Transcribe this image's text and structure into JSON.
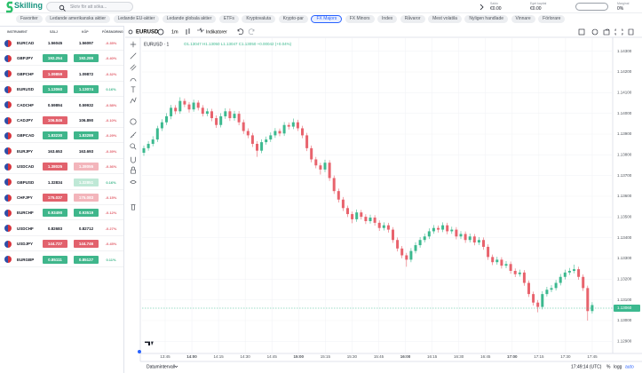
{
  "header": {
    "logo": "Skilling",
    "search_placeholder": "Skriv för att söka...",
    "account": [
      {
        "label": "Saldo",
        "value": "€0.00"
      },
      {
        "label": "Eget kapital",
        "value": "€0.00"
      },
      {
        "label": "Marginal",
        "value": "0%"
      }
    ]
  },
  "tabs": {
    "items": [
      "Favoriter",
      "Ledande amerikanska aktier",
      "Ledande EU-aktier",
      "Ledande globala aktier",
      "ETFs",
      "Kryptovaluta",
      "Krypto-par",
      "FX Majors",
      "FX Minors",
      "Index",
      "Råvaror",
      "Mest volatila",
      "Nyligen handlade",
      "Vinnare",
      "Förlorare"
    ],
    "active": 7
  },
  "watchlist": {
    "columns": [
      "INSTRUMENT",
      "SÄLJ",
      "KÖP",
      "FÖRÄNDRING"
    ],
    "rows": [
      {
        "symbol": "EURCAD",
        "sell": "1.56045",
        "buy": "1.56097",
        "change": "-0.35%",
        "sell_state": "none",
        "buy_state": "none"
      },
      {
        "symbol": "GBPJPY",
        "sell": "192.254",
        "buy": "192.289",
        "change": "-0.40%",
        "sell_state": "up",
        "buy_state": "up"
      },
      {
        "symbol": "GBPCHF",
        "sell": "1.09859",
        "buy": "1.09872",
        "change": "-0.32%",
        "sell_state": "down",
        "buy_state": "none"
      },
      {
        "symbol": "EURUSD",
        "sell": "1.13060",
        "buy": "1.13074",
        "change": "0.16%",
        "sell_state": "up",
        "buy_state": "up"
      },
      {
        "symbol": "CADCHF",
        "sell": "0.59894",
        "buy": "0.59932",
        "change": "-0.58%",
        "sell_state": "none",
        "buy_state": "none"
      },
      {
        "symbol": "CADJPY",
        "sell": "106.846",
        "buy": "106.890",
        "change": "-0.10%",
        "sell_state": "down",
        "buy_state": "none"
      },
      {
        "symbol": "GBPCAD",
        "sell": "1.83230",
        "buy": "1.83289",
        "change": "-0.29%",
        "sell_state": "up",
        "buy_state": "up"
      },
      {
        "symbol": "EURJPY",
        "sell": "163.653",
        "buy": "163.693",
        "change": "-0.39%",
        "sell_state": "none",
        "buy_state": "none"
      },
      {
        "symbol": "USDCAD",
        "sell": "1.38025",
        "buy": "1.38055",
        "change": "-0.36%",
        "sell_state": "down",
        "buy_state": "down-faint"
      },
      {
        "symbol": "GBPUSD",
        "sell": "1.32834",
        "buy": "1.32851",
        "change": "0.16%",
        "sell_state": "none",
        "buy_state": "up-faint"
      },
      {
        "symbol": "CHFJPY",
        "sell": "175.037",
        "buy": "175.083",
        "change": "-0.15%",
        "sell_state": "down",
        "buy_state": "down-faint"
      },
      {
        "symbol": "EURCHF",
        "sell": "0.93490",
        "buy": "0.93519",
        "change": "-0.12%",
        "sell_state": "up",
        "buy_state": "up"
      },
      {
        "symbol": "USDCHF",
        "sell": "0.82683",
        "buy": "0.82712",
        "change": "-0.27%",
        "sell_state": "none",
        "buy_state": "none"
      },
      {
        "symbol": "USDJPY",
        "sell": "144.727",
        "buy": "144.746",
        "change": "-0.45%",
        "sell_state": "down",
        "buy_state": "down"
      },
      {
        "symbol": "EURGBP",
        "sell": "0.85111",
        "buy": "0.85127",
        "change": "0.11%",
        "sell_state": "up",
        "buy_state": "up"
      }
    ]
  },
  "chart_data": {
    "type": "candlestick",
    "symbol": "EURUSD",
    "interval": "1m",
    "indicators_label": "Indikatorer",
    "legend_title": "EURUSD · 1",
    "legend_values": "O1.13047 H1.13050 L1.13047 C1.13050 +0.00042 (+0.04%)",
    "up_color": "#3cb98f",
    "down_color": "#e8636d",
    "grid": true,
    "ylim": [
      1.1285,
      1.1435
    ],
    "yticks": [
      {
        "value": 1.143,
        "label": "1.14300"
      },
      {
        "value": 1.142,
        "label": "1.14200"
      },
      {
        "value": 1.141,
        "label": "1.14100"
      },
      {
        "value": 1.14,
        "label": "1.14000"
      },
      {
        "value": 1.139,
        "label": "1.13900"
      },
      {
        "value": 1.138,
        "label": "1.13800"
      },
      {
        "value": 1.137,
        "label": "1.13700"
      },
      {
        "value": 1.136,
        "label": "1.13600"
      },
      {
        "value": 1.135,
        "label": "1.13500"
      },
      {
        "value": 1.134,
        "label": "1.13400"
      },
      {
        "value": 1.133,
        "label": "1.13300"
      },
      {
        "value": 1.132,
        "label": "1.13200"
      },
      {
        "value": 1.131,
        "label": "1.13100"
      },
      {
        "value": 1.13,
        "label": "1.13000"
      },
      {
        "value": 1.129,
        "label": "1.12900"
      }
    ],
    "last_price": {
      "value": 1.1306,
      "label": "1.13060"
    },
    "time_labels": [
      "13:45",
      "14:00",
      "14:15",
      "14:30",
      "14:45",
      "15:00",
      "15:15",
      "15:30",
      "15:45",
      "16:00",
      "16:15",
      "16:30",
      "16:45",
      "17:00",
      "17:15",
      "17:30",
      "17:45"
    ],
    "date_range_label": "Datumintervall",
    "clock": "17:49:14 (UTC)",
    "scale_options": [
      "%",
      "logg",
      "auto"
    ],
    "candles": [
      [
        1.1381,
        1.13845,
        1.13795,
        1.13832
      ],
      [
        1.13832,
        1.13866,
        1.1382,
        1.13853
      ],
      [
        1.13853,
        1.1389,
        1.13841,
        1.13874
      ],
      [
        1.13874,
        1.1394,
        1.13862,
        1.13928
      ],
      [
        1.13928,
        1.13972,
        1.13915,
        1.13957
      ],
      [
        1.13957,
        1.14001,
        1.13944,
        1.13986
      ],
      [
        1.13986,
        1.14041,
        1.13972,
        1.14027
      ],
      [
        1.14027,
        1.1404,
        1.13996,
        1.1401
      ],
      [
        1.1401,
        1.14078,
        1.13998,
        1.1406
      ],
      [
        1.1406,
        1.14072,
        1.1403,
        1.14043
      ],
      [
        1.14043,
        1.14055,
        1.14004,
        1.14019
      ],
      [
        1.14019,
        1.14066,
        1.14008,
        1.14052
      ],
      [
        1.14052,
        1.14063,
        1.14014,
        1.14027
      ],
      [
        1.14027,
        1.1404,
        1.13985,
        1.13998
      ],
      [
        1.13998,
        1.14024,
        1.13986,
        1.1401
      ],
      [
        1.1401,
        1.14022,
        1.13962,
        1.13977
      ],
      [
        1.13977,
        1.1399,
        1.1393,
        1.13944
      ],
      [
        1.13944,
        1.14001,
        1.13932,
        1.13986
      ],
      [
        1.13986,
        1.14025,
        1.13974,
        1.1401
      ],
      [
        1.1401,
        1.14023,
        1.13963,
        1.13977
      ],
      [
        1.13977,
        1.14012,
        1.13965,
        1.13998
      ],
      [
        1.13998,
        1.14011,
        1.13943,
        1.13957
      ],
      [
        1.13957,
        1.1397,
        1.13901,
        1.13915
      ],
      [
        1.13915,
        1.13928,
        1.1388,
        1.13894
      ],
      [
        1.13894,
        1.13906,
        1.13838,
        1.13853
      ],
      [
        1.13853,
        1.13866,
        1.1379,
        1.1382
      ],
      [
        1.1382,
        1.13875,
        1.13808,
        1.13861
      ],
      [
        1.13861,
        1.13888,
        1.13849,
        1.13874
      ],
      [
        1.13874,
        1.13908,
        1.13862,
        1.13894
      ],
      [
        1.13894,
        1.13929,
        1.13882,
        1.13915
      ],
      [
        1.13915,
        1.13927,
        1.1389,
        1.13903
      ],
      [
        1.13903,
        1.13958,
        1.13891,
        1.13944
      ],
      [
        1.13944,
        1.13956,
        1.13922,
        1.13936
      ],
      [
        1.13936,
        1.13975,
        1.13924,
        1.13957
      ],
      [
        1.13957,
        1.13969,
        1.13915,
        1.13928
      ],
      [
        1.13928,
        1.1394,
        1.1388,
        1.13894
      ],
      [
        1.13894,
        1.13906,
        1.13818,
        1.13832
      ],
      [
        1.13832,
        1.13845,
        1.13764,
        1.13778
      ],
      [
        1.13778,
        1.1379,
        1.13735,
        1.13749
      ],
      [
        1.13749,
        1.13761,
        1.13705,
        1.13729
      ],
      [
        1.13729,
        1.13776,
        1.13717,
        1.13762
      ],
      [
        1.13762,
        1.13774,
        1.13674,
        1.13688
      ],
      [
        1.13688,
        1.137,
        1.13611,
        1.13625
      ],
      [
        1.13625,
        1.13637,
        1.1357,
        1.13584
      ],
      [
        1.13584,
        1.13596,
        1.13529,
        1.13543
      ],
      [
        1.13543,
        1.13555,
        1.135,
        1.13514
      ],
      [
        1.13514,
        1.13526,
        1.1347,
        1.13489
      ],
      [
        1.13489,
        1.13536,
        1.13477,
        1.13522
      ],
      [
        1.13522,
        1.13534,
        1.13488,
        1.13501
      ],
      [
        1.13501,
        1.13513,
        1.13466,
        1.1348
      ],
      [
        1.1348,
        1.13511,
        1.13468,
        1.13497
      ],
      [
        1.13497,
        1.13509,
        1.13458,
        1.13472
      ],
      [
        1.13472,
        1.13484,
        1.13433,
        1.13447
      ],
      [
        1.13447,
        1.13474,
        1.13435,
        1.1346
      ],
      [
        1.1346,
        1.13472,
        1.13425,
        1.13439
      ],
      [
        1.13439,
        1.13451,
        1.13375,
        1.13389
      ],
      [
        1.13389,
        1.13401,
        1.13334,
        1.13348
      ],
      [
        1.13348,
        1.1336,
        1.13301,
        1.13315
      ],
      [
        1.13315,
        1.13327,
        1.1326,
        1.13294
      ],
      [
        1.13294,
        1.1335,
        1.13282,
        1.13336
      ],
      [
        1.13336,
        1.13378,
        1.13324,
        1.13364
      ],
      [
        1.13364,
        1.13403,
        1.13352,
        1.13389
      ],
      [
        1.13389,
        1.1342,
        1.13377,
        1.13406
      ],
      [
        1.13406,
        1.13445,
        1.13394,
        1.13431
      ],
      [
        1.13431,
        1.13461,
        1.13419,
        1.13447
      ],
      [
        1.13447,
        1.13459,
        1.13425,
        1.13439
      ],
      [
        1.13439,
        1.13474,
        1.13427,
        1.1346
      ],
      [
        1.1346,
        1.13472,
        1.13417,
        1.13431
      ],
      [
        1.13431,
        1.13453,
        1.13419,
        1.13439
      ],
      [
        1.13439,
        1.13451,
        1.13392,
        1.13406
      ],
      [
        1.13406,
        1.13432,
        1.13394,
        1.13418
      ],
      [
        1.13418,
        1.1343,
        1.13375,
        1.13389
      ],
      [
        1.13389,
        1.1342,
        1.13377,
        1.13406
      ],
      [
        1.13406,
        1.13418,
        1.13363,
        1.13377
      ],
      [
        1.13377,
        1.13403,
        1.13365,
        1.13389
      ],
      [
        1.13389,
        1.13401,
        1.13342,
        1.13356
      ],
      [
        1.13356,
        1.13368,
        1.13293,
        1.13307
      ],
      [
        1.13307,
        1.13319,
        1.13268,
        1.13282
      ],
      [
        1.13282,
        1.13308,
        1.1327,
        1.13294
      ],
      [
        1.13294,
        1.13306,
        1.13251,
        1.13265
      ],
      [
        1.13265,
        1.13287,
        1.13253,
        1.13273
      ],
      [
        1.13273,
        1.13285,
        1.13226,
        1.1324
      ],
      [
        1.1324,
        1.13252,
        1.1321,
        1.13224
      ],
      [
        1.13224,
        1.13246,
        1.13212,
        1.13232
      ],
      [
        1.13232,
        1.13244,
        1.13168,
        1.13182
      ],
      [
        1.13182,
        1.13194,
        1.13114,
        1.13128
      ],
      [
        1.13128,
        1.1314,
        1.13073,
        1.13087
      ],
      [
        1.13087,
        1.13099,
        1.1304,
        1.13066
      ],
      [
        1.13066,
        1.13142,
        1.13054,
        1.13128
      ],
      [
        1.13128,
        1.13163,
        1.13116,
        1.13149
      ],
      [
        1.13149,
        1.13171,
        1.13137,
        1.13157
      ],
      [
        1.13157,
        1.13196,
        1.13145,
        1.13182
      ],
      [
        1.13182,
        1.13225,
        1.1317,
        1.13211
      ],
      [
        1.13211,
        1.13246,
        1.13199,
        1.13232
      ],
      [
        1.13232,
        1.13254,
        1.1322,
        1.1324
      ],
      [
        1.1324,
        1.1327,
        1.13228,
        1.13248
      ],
      [
        1.13248,
        1.1326,
        1.13197,
        1.13211
      ],
      [
        1.13211,
        1.13223,
        1.13143,
        1.13157
      ],
      [
        1.13157,
        1.13169,
        1.13,
        1.13046
      ],
      [
        1.13046,
        1.13089,
        1.13034,
        1.13075
      ]
    ]
  }
}
